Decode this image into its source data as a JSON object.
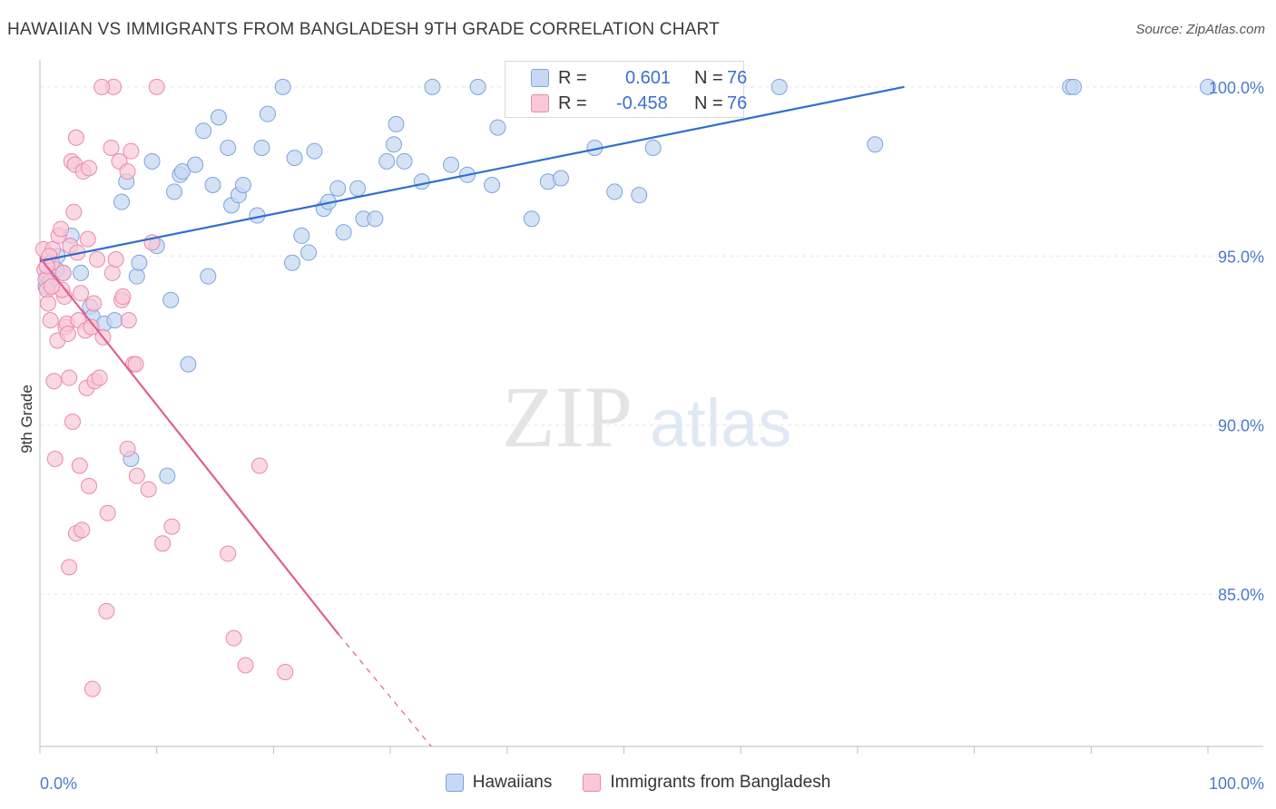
{
  "title": "HAWAIIAN VS IMMIGRANTS FROM BANGLADESH 9TH GRADE CORRELATION CHART",
  "source": "Source: ZipAtlas.com",
  "watermark": {
    "zip": "ZIP",
    "atlas": "atlas"
  },
  "colors": {
    "blue_fill": "#c6d8f3",
    "blue_stroke": "#7ea4dc",
    "blue_line": "#2e6fcc",
    "pink_fill": "#f8c8d8",
    "pink_stroke": "#e88aaa",
    "pink_line": "#e0608e",
    "tick_text": "#4a7cc9",
    "grid": "#e5e5e5"
  },
  "stats": [
    {
      "r_label": "R =",
      "r_value": "0.601",
      "n_label": "N =",
      "n_value": "76"
    },
    {
      "r_label": "R =",
      "r_value": "-0.458",
      "n_label": "N =",
      "n_value": "76"
    }
  ],
  "legend": [
    "Hawaiians",
    "Immigrants from Bangladesh"
  ],
  "chart_data": {
    "type": "scatter",
    "title": "HAWAIIAN VS IMMIGRANTS FROM BANGLADESH 9TH GRADE CORRELATION CHART",
    "xlabel": "",
    "ylabel": "9th Grade",
    "xlim": [
      0,
      100
    ],
    "ylim": [
      80.5,
      100.8
    ],
    "x_tick_labels": [
      "0.0%",
      "100.0%"
    ],
    "y_ticks": [
      85,
      90,
      95,
      100
    ],
    "y_tick_labels": [
      "85.0%",
      "90.0%",
      "95.0%",
      "100.0%"
    ],
    "grid": true,
    "legend_position": "bottom",
    "series": [
      {
        "name": "Hawaiians",
        "color": "#c6d8f3",
        "trend": {
          "x": [
            0,
            74
          ],
          "y": [
            94.85,
            100.0
          ]
        },
        "points": [
          [
            0.5,
            94.1
          ],
          [
            0.6,
            94.4
          ],
          [
            0.8,
            94.2
          ],
          [
            1.0,
            94.3
          ],
          [
            1.5,
            95.0
          ],
          [
            2.0,
            94.5
          ],
          [
            2.7,
            95.6
          ],
          [
            3.5,
            94.5
          ],
          [
            4.3,
            93.5
          ],
          [
            4.5,
            93.2
          ],
          [
            5.5,
            93.0
          ],
          [
            6.4,
            93.1
          ],
          [
            7.0,
            96.6
          ],
          [
            7.4,
            97.2
          ],
          [
            7.8,
            89.0
          ],
          [
            8.3,
            94.4
          ],
          [
            8.5,
            94.8
          ],
          [
            9.6,
            97.8
          ],
          [
            10.0,
            95.3
          ],
          [
            10.9,
            88.5
          ],
          [
            11.2,
            93.7
          ],
          [
            11.5,
            96.9
          ],
          [
            12.0,
            97.4
          ],
          [
            12.2,
            97.5
          ],
          [
            12.7,
            91.8
          ],
          [
            13.3,
            97.7
          ],
          [
            14.0,
            98.7
          ],
          [
            14.4,
            94.4
          ],
          [
            14.8,
            97.1
          ],
          [
            15.3,
            99.1
          ],
          [
            16.1,
            98.2
          ],
          [
            16.4,
            96.5
          ],
          [
            17.0,
            96.8
          ],
          [
            17.4,
            97.1
          ],
          [
            18.6,
            96.2
          ],
          [
            19.0,
            98.2
          ],
          [
            19.5,
            99.2
          ],
          [
            20.8,
            100.0
          ],
          [
            21.6,
            94.8
          ],
          [
            21.8,
            97.9
          ],
          [
            22.4,
            95.6
          ],
          [
            23.0,
            95.1
          ],
          [
            23.5,
            98.1
          ],
          [
            24.3,
            96.4
          ],
          [
            24.7,
            96.6
          ],
          [
            25.5,
            97.0
          ],
          [
            26.0,
            95.7
          ],
          [
            27.2,
            97.0
          ],
          [
            27.7,
            96.1
          ],
          [
            28.7,
            96.1
          ],
          [
            29.7,
            97.8
          ],
          [
            30.3,
            98.3
          ],
          [
            30.5,
            98.9
          ],
          [
            31.2,
            97.8
          ],
          [
            32.7,
            97.2
          ],
          [
            33.6,
            100.0
          ],
          [
            35.2,
            97.7
          ],
          [
            36.6,
            97.4
          ],
          [
            37.5,
            100.0
          ],
          [
            38.7,
            97.1
          ],
          [
            39.2,
            98.8
          ],
          [
            42.1,
            96.1
          ],
          [
            43.5,
            97.2
          ],
          [
            44.6,
            97.3
          ],
          [
            47.5,
            98.2
          ],
          [
            49.2,
            96.9
          ],
          [
            50.5,
            100.0
          ],
          [
            51.3,
            96.8
          ],
          [
            52.5,
            98.2
          ],
          [
            58.0,
            100.0
          ],
          [
            63.3,
            100.0
          ],
          [
            71.5,
            98.3
          ],
          [
            88.2,
            100.0
          ],
          [
            88.5,
            100.0
          ],
          [
            100.0,
            100.0
          ],
          [
            1.4,
            94.6
          ]
        ]
      },
      {
        "name": "Immigrants from Bangladesh",
        "color": "#f8c8d8",
        "trend": {
          "x": [
            0,
            25.6
          ],
          "y": [
            94.95,
            83.8
          ]
        },
        "trend_dashed": {
          "x": [
            25.6,
            33.5
          ],
          "y": [
            83.8,
            80.5
          ]
        },
        "points": [
          [
            0.3,
            95.2
          ],
          [
            0.4,
            94.6
          ],
          [
            0.5,
            94.3
          ],
          [
            0.6,
            94.0
          ],
          [
            0.7,
            93.6
          ],
          [
            0.9,
            93.1
          ],
          [
            1.0,
            94.8
          ],
          [
            1.1,
            95.2
          ],
          [
            1.2,
            91.3
          ],
          [
            1.3,
            89.0
          ],
          [
            1.5,
            92.5
          ],
          [
            1.6,
            95.6
          ],
          [
            1.8,
            95.8
          ],
          [
            2.0,
            94.5
          ],
          [
            2.1,
            93.8
          ],
          [
            2.2,
            92.9
          ],
          [
            2.3,
            93.0
          ],
          [
            2.5,
            91.4
          ],
          [
            2.5,
            85.8
          ],
          [
            2.6,
            95.3
          ],
          [
            2.7,
            97.8
          ],
          [
            2.8,
            90.1
          ],
          [
            2.9,
            96.3
          ],
          [
            3.0,
            97.7
          ],
          [
            3.1,
            98.5
          ],
          [
            3.1,
            86.8
          ],
          [
            3.2,
            95.1
          ],
          [
            3.3,
            93.1
          ],
          [
            3.4,
            88.8
          ],
          [
            3.6,
            86.9
          ],
          [
            3.7,
            97.5
          ],
          [
            3.9,
            92.8
          ],
          [
            4.0,
            91.1
          ],
          [
            4.1,
            95.5
          ],
          [
            4.2,
            97.6
          ],
          [
            4.2,
            88.2
          ],
          [
            4.4,
            92.9
          ],
          [
            4.5,
            82.2
          ],
          [
            4.6,
            93.6
          ],
          [
            4.7,
            91.3
          ],
          [
            5.1,
            91.4
          ],
          [
            5.4,
            92.6
          ],
          [
            5.7,
            84.5
          ],
          [
            5.8,
            87.4
          ],
          [
            6.1,
            98.2
          ],
          [
            6.2,
            94.5
          ],
          [
            6.3,
            100.0
          ],
          [
            6.5,
            94.9
          ],
          [
            6.8,
            97.8
          ],
          [
            7.0,
            93.7
          ],
          [
            7.1,
            93.8
          ],
          [
            7.5,
            97.5
          ],
          [
            7.5,
            89.3
          ],
          [
            7.6,
            93.1
          ],
          [
            7.8,
            98.1
          ],
          [
            8.0,
            91.8
          ],
          [
            8.2,
            91.8
          ],
          [
            8.3,
            88.5
          ],
          [
            9.3,
            88.1
          ],
          [
            9.6,
            95.4
          ],
          [
            10.0,
            100.0
          ],
          [
            10.5,
            86.5
          ],
          [
            11.3,
            87.0
          ],
          [
            16.1,
            86.2
          ],
          [
            16.6,
            83.7
          ],
          [
            17.6,
            82.9
          ],
          [
            18.8,
            88.8
          ],
          [
            21.0,
            82.7
          ],
          [
            0.8,
            95.0
          ],
          [
            1.9,
            94.0
          ],
          [
            2.4,
            92.7
          ],
          [
            5.3,
            100.0
          ],
          [
            3.5,
            93.9
          ],
          [
            1.0,
            94.1
          ],
          [
            0.6,
            94.7
          ],
          [
            4.9,
            94.9
          ]
        ]
      }
    ]
  }
}
